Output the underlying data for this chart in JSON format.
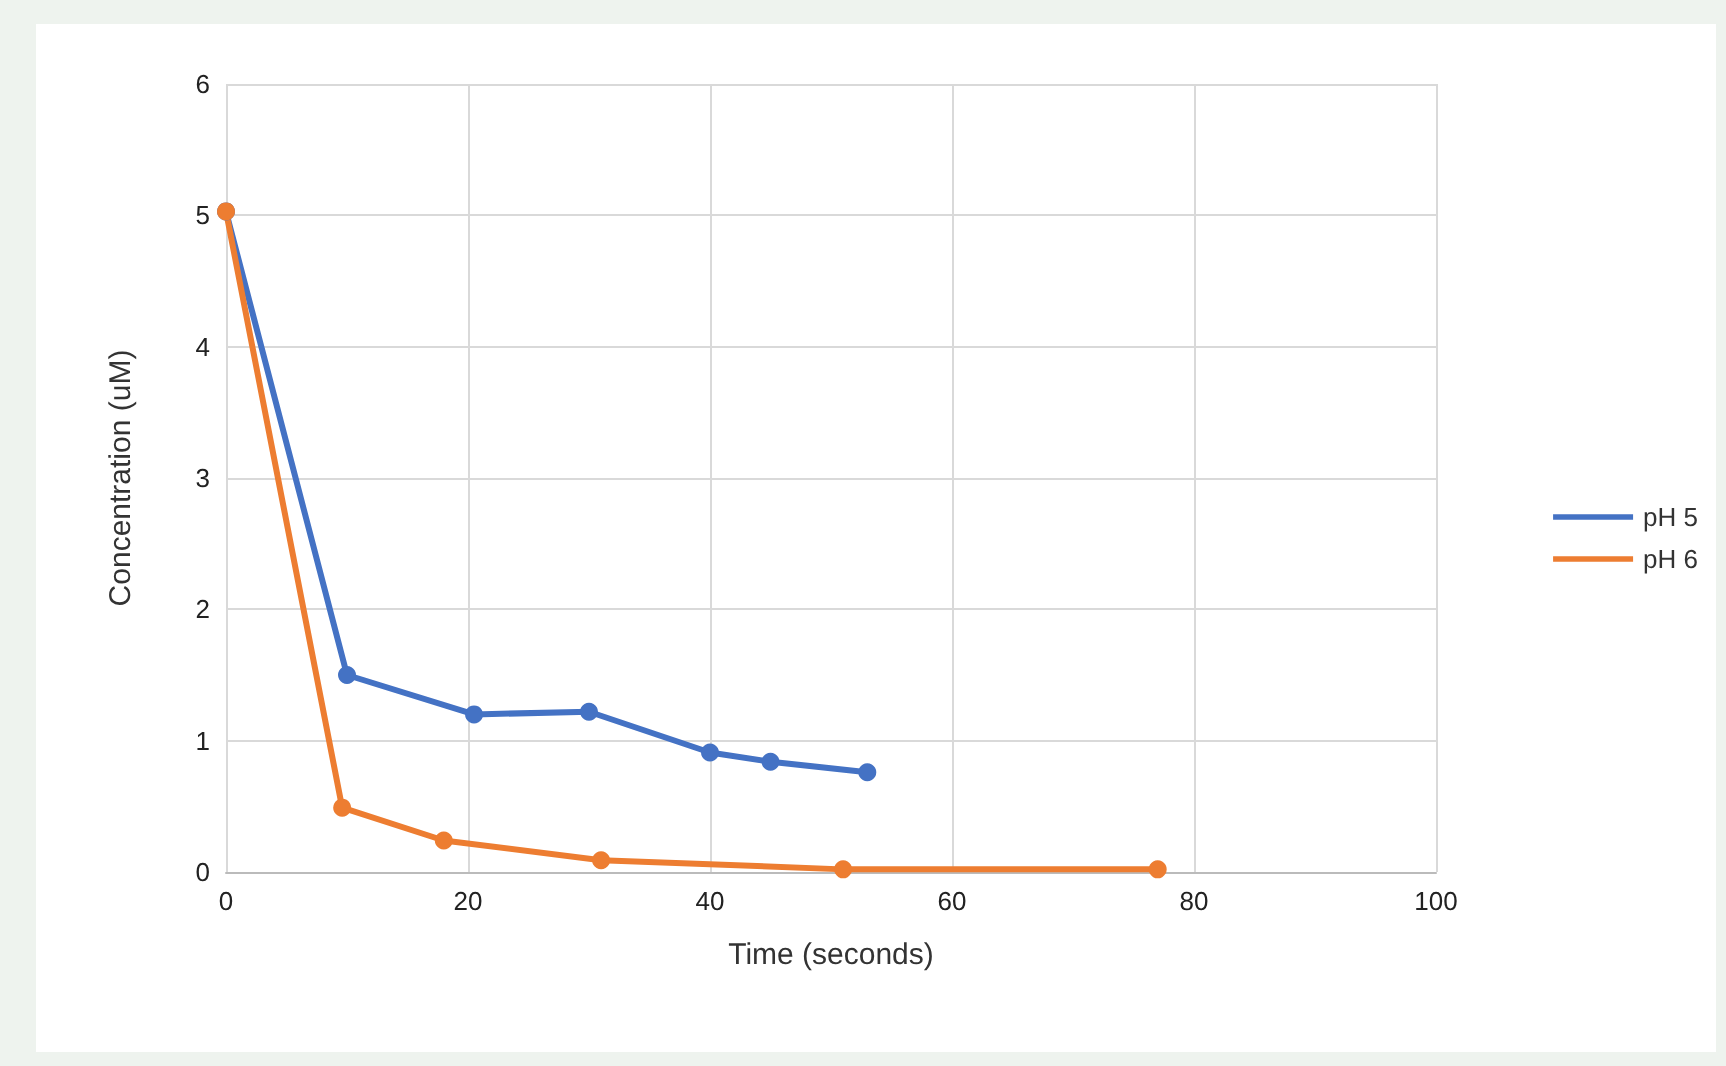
{
  "chart_data": {
    "type": "line",
    "xlabel": "Time (seconds)",
    "ylabel": "Concentration (uM)",
    "xlim": [
      0,
      100
    ],
    "xticks": [
      0,
      20,
      40,
      60,
      80,
      100
    ],
    "ylim": [
      0,
      6
    ],
    "yticks": [
      0,
      1,
      2,
      3,
      4,
      5,
      6
    ],
    "grid": true,
    "legend": "right",
    "marker": "circle",
    "line_style": "solid",
    "series": [
      {
        "name": "pH 5",
        "color": "#4472c4",
        "x": [
          0,
          10,
          20.5,
          30,
          40,
          45,
          53
        ],
        "values": [
          5.03,
          1.5,
          1.2,
          1.22,
          0.91,
          0.84,
          0.76
        ]
      },
      {
        "name": "pH 6",
        "color": "#ed7d31",
        "x": [
          0,
          9.6,
          18,
          31,
          51,
          77
        ],
        "values": [
          5.03,
          0.49,
          0.24,
          0.09,
          0.02,
          0.02
        ]
      }
    ]
  }
}
